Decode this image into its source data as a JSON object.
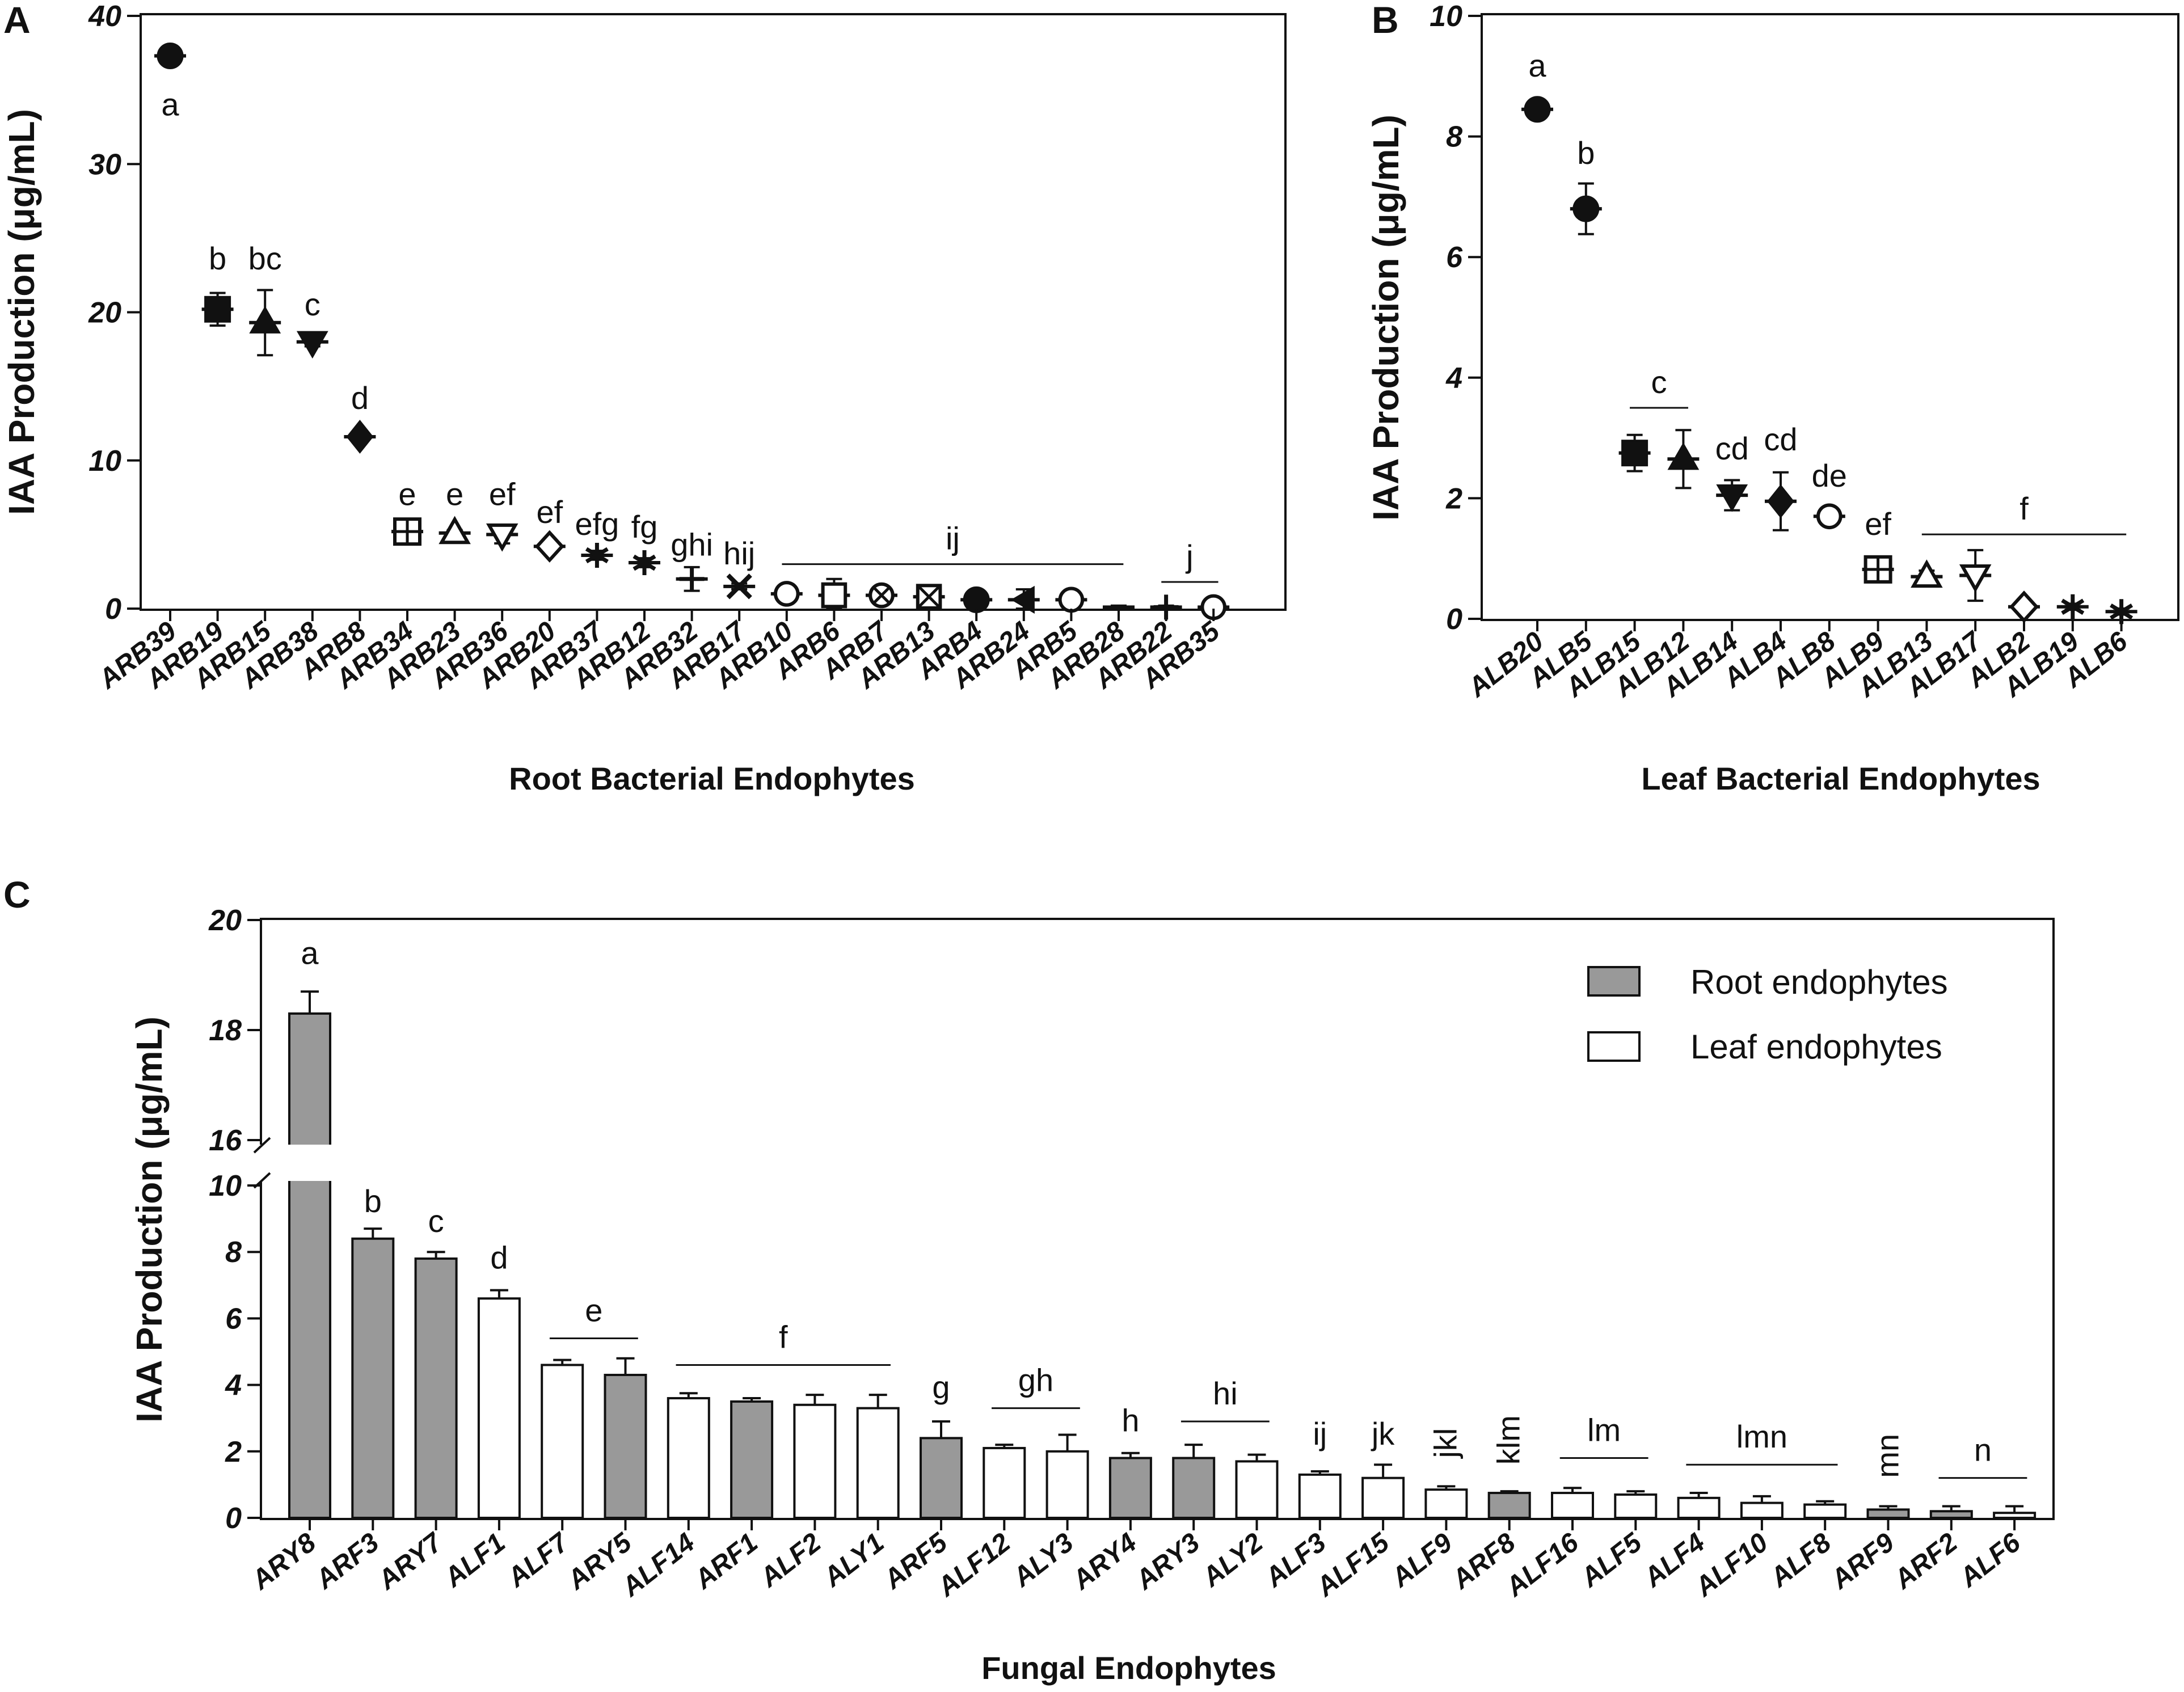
{
  "chart_data": [
    {
      "panel": "A",
      "type": "scatter",
      "xlabel": "Root Bacterial Endophytes",
      "ylabel": "IAA Production (μg/mL)",
      "ylim": [
        0,
        40
      ],
      "yticks": [
        0,
        10,
        20,
        30,
        40
      ],
      "categories": [
        "ARB39",
        "ARB19",
        "ARB15",
        "ARB38",
        "ARB8",
        "ARB34",
        "ARB23",
        "ARB36",
        "ARB20",
        "ARB37",
        "ARB12",
        "ARB32",
        "ARB17",
        "ARB10",
        "ARB6",
        "ARB7",
        "ARB13",
        "ARB4",
        "ARB24",
        "ARB5",
        "ARB28",
        "ARB22",
        "ARB35"
      ],
      "values": [
        37.3,
        20.2,
        19.3,
        18.0,
        11.6,
        5.2,
        5.1,
        5.0,
        4.2,
        3.6,
        3.1,
        2.0,
        1.5,
        1.0,
        0.9,
        0.9,
        0.8,
        0.6,
        0.6,
        0.6,
        0.1,
        0.1,
        0.1
      ],
      "errors": [
        0.3,
        1.1,
        2.2,
        0.3,
        0.3,
        0.2,
        0.2,
        0.6,
        0.3,
        0.3,
        0.3,
        0.8,
        0.2,
        0.2,
        1.1,
        0.3,
        0.5,
        0.3,
        0.7,
        0.3,
        0.1,
        0.1,
        0.2
      ],
      "markers": [
        "circle",
        "square",
        "triangle",
        "triangle-down",
        "diamond",
        "square-plus",
        "triangle-open",
        "triangle-down-open",
        "diamond-open",
        "star",
        "star",
        "plus",
        "x",
        "circle-open",
        "square-open",
        "circle-x",
        "square-x",
        "circle",
        "triangle-left",
        "circle-open",
        "none",
        "plus",
        "circle-open"
      ],
      "sig_labels": [
        {
          "text": "a",
          "at": 0,
          "value": 37.3,
          "pos": "below"
        },
        {
          "text": "b",
          "at": 1,
          "value": 22.5
        },
        {
          "text": "bc",
          "at": 2,
          "value": 22.5
        },
        {
          "text": "c",
          "at": 3,
          "value": 19.4
        },
        {
          "text": "d",
          "at": 4,
          "value": 13.1
        },
        {
          "text": "e",
          "at": 5,
          "value": 6.6
        },
        {
          "text": "e",
          "at": 6,
          "value": 6.6
        },
        {
          "text": "ef",
          "at": 7,
          "value": 6.6
        },
        {
          "text": "ef",
          "at": 8,
          "value": 5.4
        },
        {
          "text": "efg",
          "at": 9,
          "value": 4.6
        },
        {
          "text": "fg",
          "at": 10,
          "value": 4.4
        },
        {
          "text": "ghi",
          "at": 11,
          "value": 3.2
        },
        {
          "text": "hij",
          "at": 12,
          "value": 2.6
        },
        {
          "text": "ij",
          "from": 13,
          "to": 20,
          "value": 3.0,
          "line": true
        },
        {
          "text": "j",
          "from": 21,
          "to": 22,
          "value": 1.8,
          "line": true
        }
      ]
    },
    {
      "panel": "B",
      "type": "scatter",
      "xlabel": "Leaf Bacterial Endophytes",
      "ylabel": "IAA Production (μg/mL)",
      "ylim": [
        0,
        10
      ],
      "yticks": [
        0,
        2,
        4,
        6,
        8,
        10
      ],
      "categories": [
        "ALB20",
        "ALB5",
        "ALB15",
        "ALB12",
        "ALB14",
        "ALB4",
        "ALB8",
        "ALB9",
        "ALB13",
        "ALB17",
        "ALB2",
        "ALB19",
        "ALB6"
      ],
      "values": [
        8.45,
        6.8,
        2.75,
        2.65,
        2.05,
        1.95,
        1.7,
        0.82,
        0.7,
        0.72,
        0.2,
        0.2,
        0.12
      ],
      "errors": [
        0.05,
        0.42,
        0.3,
        0.48,
        0.25,
        0.48,
        0.08,
        0.05,
        0.1,
        0.42,
        0.05,
        0.05,
        0.05
      ],
      "markers": [
        "circle",
        "circle",
        "square",
        "triangle",
        "triangle-down",
        "diamond",
        "circle-open",
        "square-plus",
        "triangle-open",
        "triangle-down-open",
        "diamond-open",
        "star",
        "star"
      ],
      "sig_labels": [
        {
          "text": "a",
          "at": 0,
          "value": 8.9
        },
        {
          "text": "b",
          "at": 1,
          "value": 7.45
        },
        {
          "text": "c",
          "from": 2,
          "to": 3,
          "value": 3.5,
          "line": true
        },
        {
          "text": "cd",
          "at": 4,
          "value": 2.55
        },
        {
          "text": "cd",
          "at": 5,
          "value": 2.7
        },
        {
          "text": "de",
          "at": 6,
          "value": 2.1
        },
        {
          "text": "ef",
          "at": 7,
          "value": 1.3
        },
        {
          "text": "f",
          "from": 8,
          "to": 12,
          "value": 1.4,
          "line": true
        }
      ]
    },
    {
      "panel": "C",
      "type": "bar",
      "xlabel": "Fungal Endophytes",
      "ylabel": "IAA Production (μg/mL)",
      "yticks": [
        0,
        2,
        4,
        6,
        8,
        10,
        16,
        18,
        20
      ],
      "y_axis_break": {
        "lower": [
          0,
          10
        ],
        "upper": [
          16,
          20
        ]
      },
      "legend": [
        "Root endophytes",
        "Leaf endophytes"
      ],
      "legend_position": "top-right",
      "categories": [
        "ARY8",
        "ARF3",
        "ARY7",
        "ALF1",
        "ALF7",
        "ARY5",
        "ALF14",
        "ARF1",
        "ALF2",
        "ALY1",
        "ARF5",
        "ALF12",
        "ALY3",
        "ARY4",
        "ARY3",
        "ALY2",
        "ALF3",
        "ALF15",
        "ALF9",
        "ARF8",
        "ALF16",
        "ALF5",
        "ALF4",
        "ALF10",
        "ALF8",
        "ARF9",
        "ARF2",
        "ALF6"
      ],
      "values": [
        18.3,
        8.4,
        7.8,
        6.6,
        4.6,
        4.3,
        3.6,
        3.5,
        3.4,
        3.3,
        2.4,
        2.1,
        2.0,
        1.8,
        1.8,
        1.7,
        1.3,
        1.2,
        0.85,
        0.75,
        0.75,
        0.7,
        0.6,
        0.45,
        0.4,
        0.25,
        0.2,
        0.15
      ],
      "errors": [
        0.4,
        0.3,
        0.2,
        0.25,
        0.15,
        0.5,
        0.15,
        0.1,
        0.3,
        0.4,
        0.5,
        0.1,
        0.5,
        0.15,
        0.4,
        0.2,
        0.1,
        0.4,
        0.1,
        0.05,
        0.15,
        0.1,
        0.15,
        0.2,
        0.1,
        0.1,
        0.15,
        0.2
      ],
      "groups": [
        "root",
        "root",
        "root",
        "leaf",
        "leaf",
        "root",
        "leaf",
        "root",
        "leaf",
        "leaf",
        "root",
        "leaf",
        "leaf",
        "root",
        "root",
        "leaf",
        "leaf",
        "leaf",
        "leaf",
        "root",
        "leaf",
        "leaf",
        "leaf",
        "leaf",
        "leaf",
        "root",
        "root",
        "leaf"
      ],
      "sig_labels": [
        {
          "text": "a",
          "at": 0,
          "value": 19.2
        },
        {
          "text": "b",
          "at": 1,
          "value": 9.2
        },
        {
          "text": "c",
          "at": 2,
          "value": 8.6
        },
        {
          "text": "d",
          "at": 3,
          "value": 7.5
        },
        {
          "text": "e",
          "from": 4,
          "to": 5,
          "value": 5.4,
          "line": true
        },
        {
          "text": "f",
          "from": 6,
          "to": 9,
          "value": 4.6,
          "line": true
        },
        {
          "text": "g",
          "at": 10,
          "value": 3.6
        },
        {
          "text": "gh",
          "from": 11,
          "to": 12,
          "value": 3.3,
          "line": true
        },
        {
          "text": "h",
          "at": 13,
          "value": 2.6
        },
        {
          "text": "hi",
          "from": 14,
          "to": 15,
          "value": 2.9,
          "line": true
        },
        {
          "text": "ij",
          "at": 16,
          "value": 2.2
        },
        {
          "text": "jk",
          "at": 17,
          "value": 2.2
        },
        {
          "text": "jkl",
          "at": 18,
          "value": 1.8,
          "rotate": true
        },
        {
          "text": "klm",
          "at": 19,
          "value": 1.6,
          "rotate": true
        },
        {
          "text": "lm",
          "from": 20,
          "to": 21,
          "value": 1.8,
          "line": true
        },
        {
          "text": "lmn",
          "from": 22,
          "to": 24,
          "value": 1.6,
          "line": true
        },
        {
          "text": "mn",
          "at": 25,
          "value": 1.2,
          "rotate": true
        },
        {
          "text": "n",
          "from": 26,
          "to": 27,
          "value": 1.2,
          "line": true
        }
      ]
    }
  ],
  "panel_letters": {
    "a": "A",
    "b": "B",
    "c": "C"
  },
  "colors": {
    "root_fill": "#999999",
    "leaf_fill": "#ffffff",
    "ink": "#111111"
  }
}
